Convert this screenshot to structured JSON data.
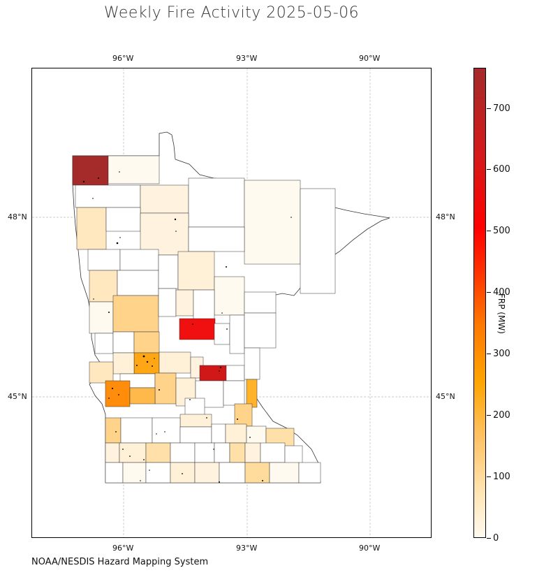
{
  "title": "Weekly Fire Activity 2025-05-06",
  "source": "NOAA/NESDIS Hazard Mapping System",
  "map": {
    "region": "Minnesota counties",
    "lon_ticks": [
      "96°W",
      "93°W",
      "90°W"
    ],
    "lat_ticks": [
      "48°N",
      "45°N"
    ],
    "gridlines": true
  },
  "colorbar": {
    "label": "FRP (MW)",
    "ticks": [
      "0",
      "100",
      "200",
      "300",
      "400",
      "500",
      "600",
      "700"
    ],
    "range": [
      0,
      765
    ],
    "colormap": [
      "#fffaf0",
      "#ffd27f",
      "#ffa500",
      "#ff3000",
      "#ff0000",
      "#a52a2a"
    ]
  },
  "chart_data": {
    "type": "choropleth",
    "title": "Weekly Fire Activity 2025-05-06",
    "value_label": "FRP (MW)",
    "vmin": 0,
    "vmax": 765,
    "notable_counties_approx": [
      {
        "location": "northwest corner",
        "frp": 750
      },
      {
        "location": "central (east of center)",
        "frp": 590
      },
      {
        "location": "east-central",
        "frp": 680
      },
      {
        "location": "west-central near 45°N",
        "frp": 300
      },
      {
        "location": "west-central",
        "frp": 280
      },
      {
        "location": "east border near 45°N",
        "frp": 240
      }
    ]
  }
}
